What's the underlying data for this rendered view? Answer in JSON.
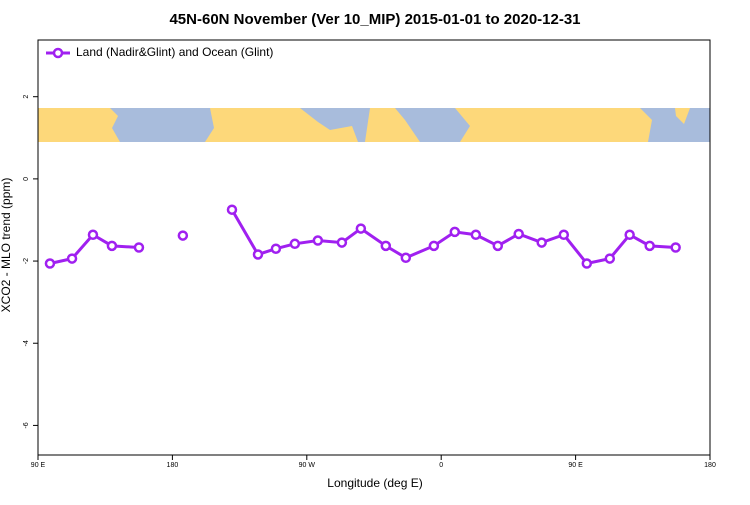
{
  "chart_data": {
    "type": "line",
    "title": "45N-60N November (Ver 10_MIP)   2015-01-01 to 2020-12-31",
    "x_label": "Longitude (deg E)",
    "y_label": "XCO2 - MLO trend (ppm)",
    "x": [
      98,
      112.8,
      126.8,
      139.5,
      157.6,
      172.5,
      187,
      202.5,
      219.9,
      237.3,
      249.3,
      262,
      277.4,
      293.5,
      306.2,
      322.9,
      336.3,
      355.1,
      369.1,
      383.2,
      397.9,
      411.9,
      427.3,
      442.1,
      457.5,
      472.9,
      486.2,
      499.6,
      517
    ],
    "series": [
      {
        "name": "Land (Nadir&Glint) and Ocean (Glint)",
        "color": "#a020f0",
        "values": [
          -2.06,
          -1.94,
          -1.36,
          -1.63,
          -1.67,
          null,
          -1.38,
          null,
          -0.75,
          -1.84,
          -1.7,
          -1.58,
          -1.5,
          -1.55,
          -1.21,
          -1.63,
          -1.92,
          -1.63,
          -1.29,
          -1.36,
          -1.63,
          -1.34,
          -1.55,
          -1.36,
          -2.06,
          -1.94,
          -1.36,
          -1.63,
          -1.67
        ]
      }
    ],
    "xlim": [
      90,
      540
    ],
    "xticks": [
      {
        "value": 90,
        "label": "90 E"
      },
      {
        "value": 180,
        "label": "180"
      },
      {
        "value": 270,
        "label": "90 W"
      },
      {
        "value": 360,
        "label": "0"
      },
      {
        "value": 450,
        "label": "90 E"
      },
      {
        "value": 540,
        "label": "180"
      }
    ],
    "ylim": [
      -6.72,
      3.38
    ],
    "yticks": [
      2,
      0,
      -2,
      -4,
      -6
    ],
    "legend": "top-left"
  }
}
